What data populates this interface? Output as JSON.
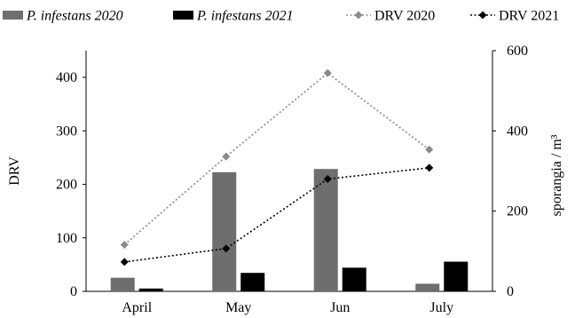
{
  "chart_data": {
    "type": "bar",
    "categories": [
      "April",
      "May",
      "Jun",
      "July"
    ],
    "series": [
      {
        "name": "P. infestans 2020",
        "kind": "bar",
        "axis": "right",
        "color": "#6e6e6e",
        "italic": true,
        "values": [
          34,
          297,
          305,
          19
        ]
      },
      {
        "name": "P. infestans 2021",
        "kind": "bar",
        "axis": "right",
        "color": "#000000",
        "italic": true,
        "values": [
          7,
          46,
          59,
          74
        ]
      },
      {
        "name": "DRV 2020",
        "kind": "line",
        "axis": "left",
        "color": "#8a8a8a",
        "marker": "diamond",
        "dash": "dotted",
        "italic": false,
        "values": [
          87,
          252,
          408,
          265
        ]
      },
      {
        "name": "DRV 2021",
        "kind": "line",
        "axis": "left",
        "color": "#000000",
        "marker": "diamond",
        "dash": "dotted",
        "italic": false,
        "values": [
          55,
          80,
          210,
          231
        ]
      }
    ],
    "ylabel": "DRV",
    "y2label": "sporangia / m³",
    "ylim": [
      0,
      450
    ],
    "y2lim": [
      0,
      600
    ],
    "yticks": [
      0,
      100,
      200,
      300,
      400
    ],
    "y2ticks": [
      0,
      200,
      400,
      600
    ],
    "legend_position": "top",
    "grid": false
  }
}
